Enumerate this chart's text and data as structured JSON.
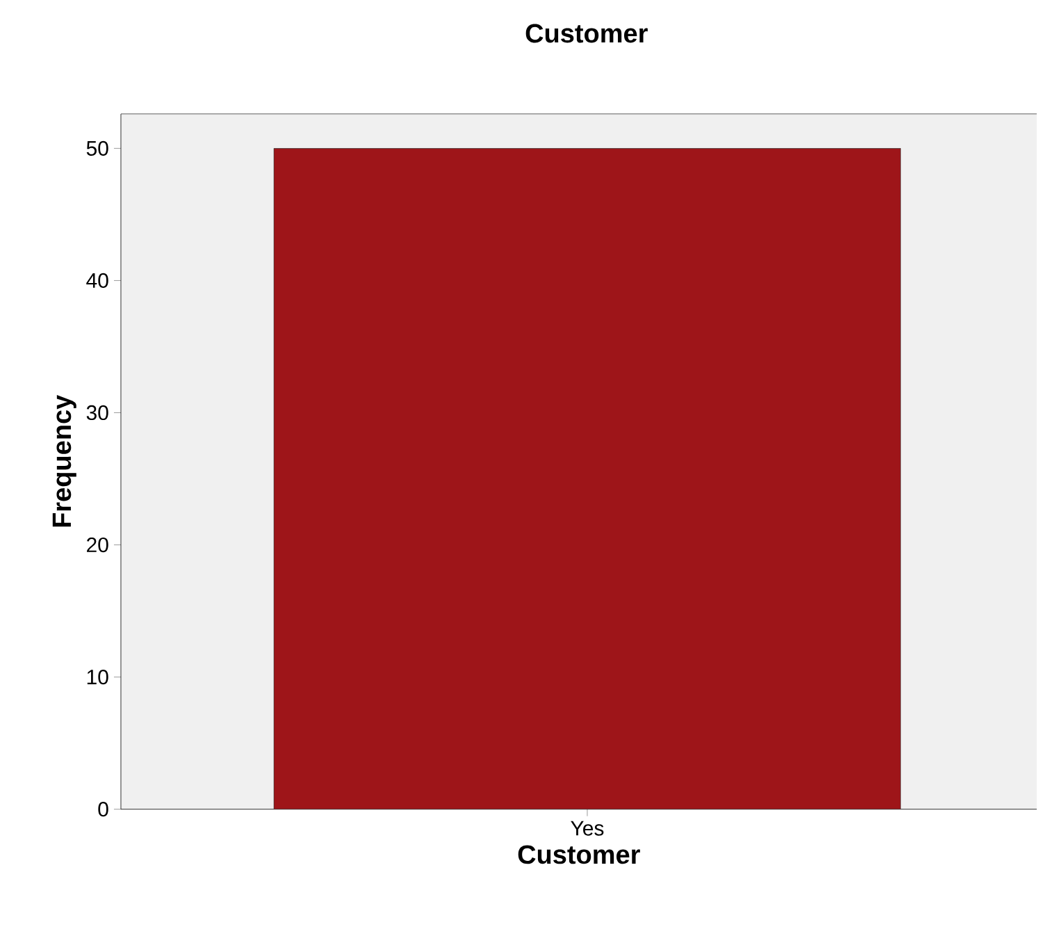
{
  "chart_data": {
    "type": "bar",
    "title": "Customer",
    "xlabel": "Customer",
    "ylabel": "Frequency",
    "categories": [
      "Yes"
    ],
    "values": [
      50
    ],
    "color": "#9e1519",
    "ylim": [
      0,
      52.6
    ],
    "yticks": [
      0,
      10,
      20,
      30,
      40,
      50
    ]
  }
}
